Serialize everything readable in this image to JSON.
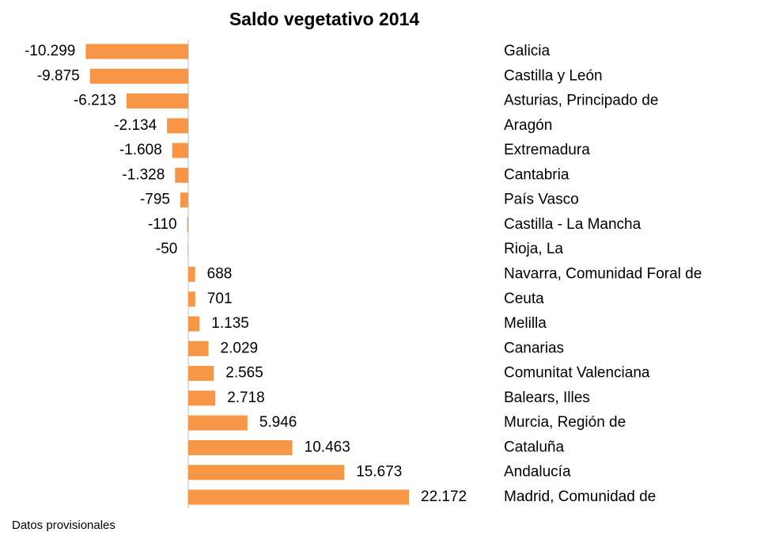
{
  "chart_data": {
    "type": "bar",
    "orientation": "horizontal",
    "title": "Saldo vegetativo 2014",
    "categories": [
      "Galicia",
      "Castilla y León",
      "Asturias, Principado de",
      "Aragón",
      "Extremadura",
      "Cantabria",
      "País Vasco",
      "Castilla - La Mancha",
      "Rioja, La",
      "Navarra, Comunidad Foral de",
      "Ceuta",
      "Melilla",
      "Canarias",
      "Comunitat Valenciana",
      "Balears, Illes",
      "Murcia, Región de",
      "Cataluña",
      "Andalucía",
      "Madrid, Comunidad de"
    ],
    "values": [
      -10299,
      -9875,
      -6213,
      -2134,
      -1608,
      -1328,
      -795,
      -110,
      -50,
      688,
      701,
      1135,
      2029,
      2565,
      2718,
      5946,
      10463,
      15673,
      22172
    ],
    "value_labels": [
      "-10.299",
      "-9.875",
      "-6.213",
      "-2.134",
      "-1.608",
      "-1.328",
      "-795",
      "-110",
      "-50",
      "688",
      "701",
      "1.135",
      "2.029",
      "2.565",
      "2.718",
      "5.946",
      "10.463",
      "15.673",
      "22.172"
    ],
    "color": "#f79646",
    "note": "Datos provisionales"
  }
}
